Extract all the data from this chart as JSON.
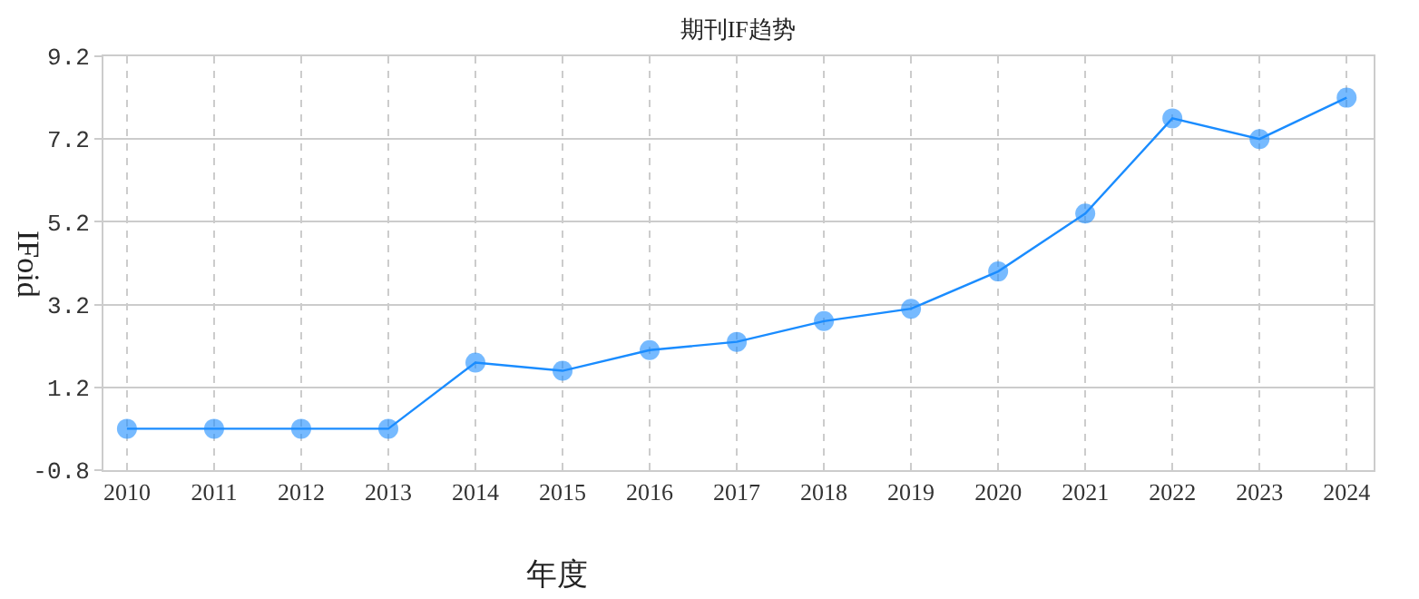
{
  "chart_data": {
    "type": "line",
    "title": "期刊IF趋势",
    "xlabel": "年度",
    "ylabel": "IFoid",
    "categories": [
      "2010",
      "2011",
      "2012",
      "2013",
      "2014",
      "2015",
      "2016",
      "2017",
      "2018",
      "2019",
      "2020",
      "2021",
      "2022",
      "2023",
      "2024"
    ],
    "series": [
      {
        "color": "#1a8cff",
        "values": [
          0.2,
          0.2,
          0.2,
          0.2,
          1.8,
          1.6,
          2.1,
          2.3,
          2.8,
          3.1,
          4.0,
          5.4,
          7.7,
          7.2,
          8.2
        ]
      }
    ],
    "ylim": [
      -0.8,
      9.2
    ],
    "yticks": [
      -0.8,
      1.2,
      3.2,
      5.2,
      7.2,
      9.2
    ],
    "grid": true,
    "marker": "circle",
    "line_style": "solid"
  }
}
